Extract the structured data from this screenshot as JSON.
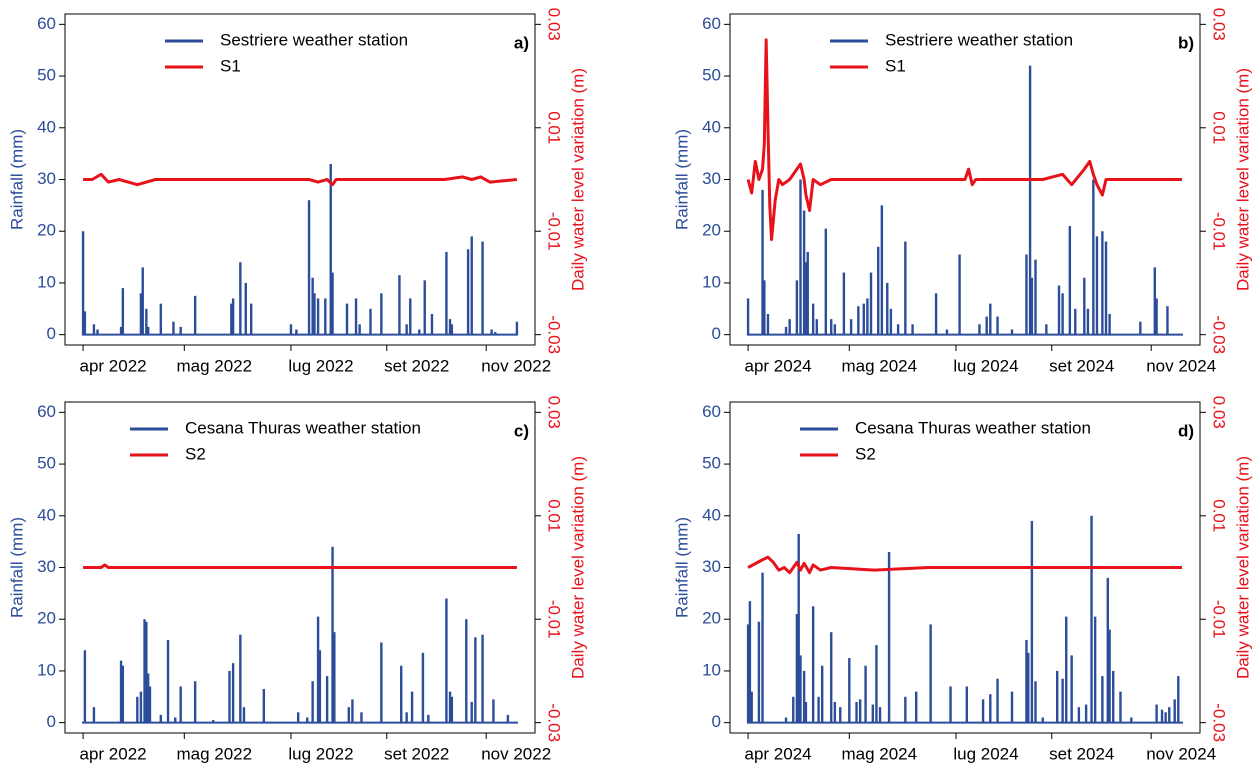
{
  "chart_data": [
    {
      "type": "bar",
      "panel_label": "a)",
      "ylabel": "Rainfall (mm)",
      "y2label": "Daily water level variation (m)",
      "xlim": [
        -10,
        250
      ],
      "xticks": [
        {
          "value": 0,
          "label": "apr 2022"
        },
        {
          "value": 56,
          "label": "mag 2022"
        },
        {
          "value": 115,
          "label": "lug 2022"
        },
        {
          "value": 168,
          "label": "set 2022"
        },
        {
          "value": 223,
          "label": "nov 2022"
        }
      ],
      "ylim": [
        -2,
        62
      ],
      "yticks": [
        0,
        10,
        20,
        30,
        40,
        50,
        60
      ],
      "y2lim": [
        -0.032,
        0.032
      ],
      "y2ticks": [
        -0.03,
        -0.01,
        0.01,
        0.03
      ],
      "series": [
        {
          "name": "Sestriere weather station",
          "color": "#2c4d9a",
          "type": "bar",
          "x": [
            0,
            1,
            6,
            8,
            21,
            22,
            32,
            33,
            35,
            36,
            43,
            50,
            54,
            62,
            82,
            83,
            87,
            90,
            93,
            115,
            118,
            125,
            127,
            128,
            130,
            134,
            137,
            138,
            146,
            151,
            153,
            159,
            165,
            175,
            179,
            181,
            186,
            189,
            193,
            201,
            203,
            204,
            213,
            215,
            221,
            226,
            228,
            240
          ],
          "values": [
            20,
            4.5,
            2,
            1,
            1.5,
            9,
            8,
            13,
            5,
            1.5,
            6,
            2.5,
            1.5,
            7.5,
            6,
            7,
            14,
            10,
            6,
            2,
            1,
            26,
            11,
            8,
            7,
            7,
            33,
            12,
            6,
            7,
            2,
            5,
            8,
            11.5,
            2,
            7,
            1,
            10.5,
            4,
            16,
            3,
            2,
            16.5,
            19,
            18,
            1,
            0.5,
            2.5
          ]
        },
        {
          "name": "S1",
          "color": "#e8121b",
          "type": "line",
          "axis": "y2",
          "x": [
            0,
            5,
            10,
            14,
            20,
            30,
            40,
            80,
            125,
            130,
            135,
            138,
            140,
            200,
            210,
            215,
            220,
            225,
            240
          ],
          "values": [
            0,
            0,
            0.001,
            -0.0005,
            0,
            -0.001,
            0,
            0,
            0,
            -0.0005,
            0,
            -0.001,
            0,
            0,
            0.0005,
            0,
            0.0005,
            -0.0005,
            0
          ]
        }
      ]
    },
    {
      "type": "bar",
      "panel_label": "b)",
      "ylabel": "Rainfall (mm)",
      "y2label": "Daily water level variation (m)",
      "xlim": [
        -10,
        250
      ],
      "xticks": [
        {
          "value": 0,
          "label": "apr 2024"
        },
        {
          "value": 56,
          "label": "mag 2024"
        },
        {
          "value": 115,
          "label": "lug 2024"
        },
        {
          "value": 168,
          "label": "set 2024"
        },
        {
          "value": 223,
          "label": "nov 2024"
        }
      ],
      "ylim": [
        -2,
        62
      ],
      "yticks": [
        0,
        10,
        20,
        30,
        40,
        50,
        60
      ],
      "y2lim": [
        -0.032,
        0.032
      ],
      "y2ticks": [
        -0.03,
        -0.01,
        0.01,
        0.03
      ],
      "series": [
        {
          "name": "Sestriere weather station",
          "color": "#2c4d9a",
          "type": "bar",
          "x": [
            0,
            8,
            9,
            11,
            21,
            23,
            27,
            29,
            31,
            32,
            33,
            36,
            38,
            43,
            46,
            48,
            53,
            57,
            61,
            64,
            66,
            68,
            72,
            74,
            77,
            79,
            83,
            87,
            91,
            104,
            110,
            117,
            128,
            132,
            134,
            138,
            146,
            154,
            156,
            157,
            159,
            165,
            172,
            174,
            178,
            181,
            186,
            188,
            191,
            193,
            196,
            198,
            200,
            217,
            225,
            226,
            232
          ],
          "values": [
            7,
            28,
            10.5,
            4,
            1.5,
            3,
            10.5,
            30,
            24,
            14,
            16,
            6,
            3,
            20.5,
            3,
            2,
            12,
            3,
            5.5,
            6,
            7,
            12,
            17,
            25,
            10,
            5,
            2,
            18,
            2,
            8,
            1,
            15.5,
            2,
            3.5,
            6,
            3.5,
            1,
            15.5,
            52,
            11,
            14.5,
            2,
            9.5,
            8,
            21,
            5,
            11,
            5,
            30,
            19,
            20,
            18,
            4,
            2.5,
            13,
            7,
            5.5
          ]
        },
        {
          "name": "S1",
          "color": "#e8121b",
          "type": "line",
          "axis": "y2",
          "x": [
            0,
            2,
            4,
            6,
            8,
            9,
            10,
            11,
            12,
            13,
            15,
            17,
            19,
            23,
            29,
            31,
            32,
            34,
            36,
            40,
            46,
            85,
            120,
            122,
            124,
            126,
            163,
            174,
            179,
            186,
            189,
            191,
            193,
            196,
            198,
            202,
            240
          ],
          "values": [
            0,
            -0.0026,
            0.0035,
            0,
            0.002,
            0.007,
            0.027,
            0.01,
            -0.005,
            -0.0116,
            -0.004,
            0,
            -0.001,
            0,
            0.003,
            0,
            -0.003,
            -0.006,
            0,
            -0.001,
            0,
            0,
            0,
            0.002,
            -0.001,
            0,
            0,
            0.001,
            -0.001,
            0.002,
            0.0035,
            0.001,
            -0.001,
            -0.003,
            0,
            0,
            0
          ]
        }
      ]
    },
    {
      "type": "bar",
      "panel_label": "c)",
      "ylabel": "Rainfall (mm)",
      "y2label": "Daily water level variation (m)",
      "xlim": [
        -10,
        250
      ],
      "xticks": [
        {
          "value": 0,
          "label": "apr 2022"
        },
        {
          "value": 56,
          "label": "mag 2022"
        },
        {
          "value": 115,
          "label": "lug 2022"
        },
        {
          "value": 168,
          "label": "set 2022"
        },
        {
          "value": 223,
          "label": "nov 2022"
        }
      ],
      "ylim": [
        -2,
        62
      ],
      "yticks": [
        0,
        10,
        20,
        30,
        40,
        50,
        60
      ],
      "y2lim": [
        -0.032,
        0.032
      ],
      "y2ticks": [
        -0.03,
        -0.01,
        0.01,
        0.03
      ],
      "series": [
        {
          "name": "Cesana Thuras weather station",
          "color": "#2c4d9a",
          "type": "bar",
          "x": [
            1,
            6,
            21,
            22,
            30,
            32,
            34,
            35,
            36,
            37,
            43,
            47,
            51,
            54,
            62,
            72,
            81,
            83,
            87,
            89,
            100,
            119,
            124,
            127,
            130,
            131,
            135,
            138,
            139,
            147,
            149,
            154,
            165,
            176,
            179,
            182,
            188,
            191,
            201,
            203,
            204,
            212,
            215,
            217,
            221,
            227,
            235
          ],
          "values": [
            14,
            3,
            12,
            11,
            5,
            6,
            20,
            19.5,
            9.5,
            7,
            1.5,
            16,
            1,
            7,
            8,
            0.5,
            10,
            11.5,
            17,
            3,
            6.5,
            2,
            1,
            8,
            20.5,
            14,
            9,
            34,
            17.5,
            3,
            4.5,
            2,
            15.5,
            11,
            2,
            6,
            13.5,
            1.5,
            24,
            6,
            5,
            20,
            4,
            16.5,
            17,
            4.5,
            1.5
          ]
        },
        {
          "name": "S2",
          "color": "#e8121b",
          "type": "line",
          "axis": "y2",
          "x": [
            0,
            10,
            12,
            14,
            100,
            240
          ],
          "values": [
            0,
            0,
            0.0005,
            0,
            0,
            0
          ]
        }
      ]
    },
    {
      "type": "bar",
      "panel_label": "d)",
      "ylabel": "Rainfall (mm)",
      "y2label": "Daily water level variation (m)",
      "xlim": [
        -10,
        250
      ],
      "xticks": [
        {
          "value": 0,
          "label": "apr 2024"
        },
        {
          "value": 56,
          "label": "mag 2024"
        },
        {
          "value": 115,
          "label": "lug 2024"
        },
        {
          "value": 168,
          "label": "set 2024"
        },
        {
          "value": 223,
          "label": "nov 2024"
        }
      ],
      "ylim": [
        -2,
        62
      ],
      "yticks": [
        0,
        10,
        20,
        30,
        40,
        50,
        60
      ],
      "y2lim": [
        -0.032,
        0.032
      ],
      "y2ticks": [
        -0.03,
        -0.01,
        0.01,
        0.03
      ],
      "series": [
        {
          "name": "Cesana Thuras weather station",
          "color": "#2c4d9a",
          "type": "bar",
          "x": [
            0,
            1,
            2,
            6,
            8,
            21,
            25,
            27,
            28,
            29,
            31,
            32,
            36,
            39,
            41,
            46,
            48,
            51,
            56,
            60,
            62,
            65,
            69,
            71,
            73,
            78,
            87,
            93,
            101,
            112,
            121,
            130,
            134,
            138,
            146,
            154,
            155,
            157,
            159,
            163,
            171,
            174,
            176,
            179,
            183,
            187,
            190,
            192,
            196,
            199,
            200,
            202,
            206,
            212,
            226,
            229,
            231,
            233,
            236,
            238
          ],
          "values": [
            19,
            23.5,
            6,
            19.5,
            29,
            1,
            5,
            21,
            36.5,
            13,
            10,
            4,
            22.5,
            5,
            11,
            17.5,
            4,
            3,
            12.5,
            4,
            4.5,
            11,
            3.5,
            15,
            3,
            33,
            5,
            6,
            19,
            7,
            7,
            4.5,
            5.5,
            8.5,
            6,
            16,
            13.5,
            39,
            8,
            1,
            10,
            8.5,
            20.5,
            13,
            3,
            3.5,
            40,
            20.5,
            9,
            28,
            18,
            10,
            6,
            1,
            3.5,
            2.5,
            2,
            3,
            4.5,
            9
          ]
        },
        {
          "name": "S2",
          "color": "#e8121b",
          "type": "line",
          "axis": "y2",
          "x": [
            0,
            8,
            11,
            14,
            17,
            20,
            23,
            27,
            29,
            31,
            34,
            36,
            40,
            46,
            70,
            100,
            240
          ],
          "values": [
            0,
            0.0015,
            0.002,
            0.001,
            -0.0005,
            0,
            -0.001,
            0.001,
            -0.0005,
            0.0008,
            -0.001,
            0.0005,
            -0.0005,
            0,
            -0.0005,
            0,
            0
          ]
        }
      ]
    }
  ]
}
